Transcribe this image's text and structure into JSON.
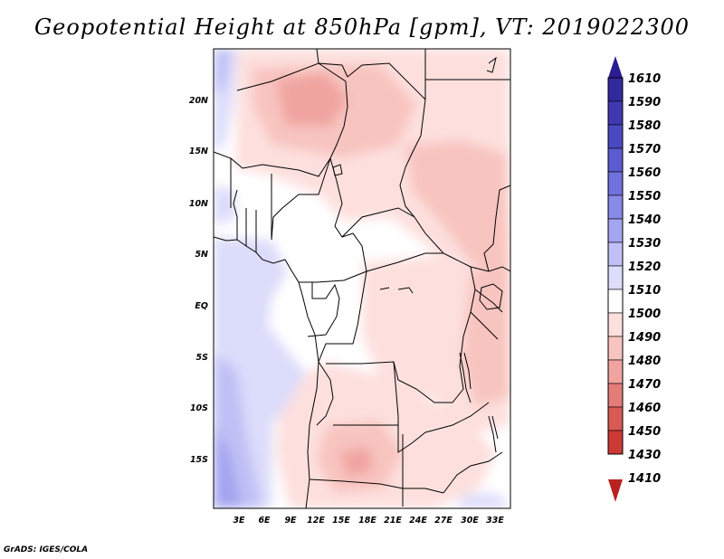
{
  "title": "Geopotential Height at 850hPa [gpm], VT: 2019022300",
  "credit": "GrADS: IGES/COLA",
  "lat_labels": [
    "20N",
    "15N",
    "10N",
    "5N",
    "EQ",
    "5S",
    "10S",
    "15S"
  ],
  "lon_labels": [
    "3E",
    "6E",
    "9E",
    "12E",
    "15E",
    "18E",
    "21E",
    "24E",
    "27E",
    "30E",
    "33E"
  ],
  "colorbar": {
    "labels": [
      "1610",
      "1590",
      "1580",
      "1570",
      "1560",
      "1550",
      "1540",
      "1530",
      "1520",
      "1510",
      "1500",
      "1490",
      "1480",
      "1470",
      "1460",
      "1450",
      "1430",
      "1410"
    ],
    "colors": [
      "#2a1c92",
      "#33299f",
      "#3f38b0",
      "#4c49c0",
      "#5c5bd0",
      "#7170dd",
      "#8989e8",
      "#a4a4f0",
      "#c0c0f6",
      "#dcdcfb",
      "#ffffff",
      "#fde0de",
      "#f8c4c0",
      "#f0a4a0",
      "#e47c78",
      "#d85a55",
      "#cc3a34",
      "#b82320"
    ]
  },
  "chart_data": {
    "type": "heatmap",
    "title": "Geopotential Height at 850hPa [gpm], VT: 2019022300",
    "variable": "Geopotential Height",
    "level": "850hPa",
    "units": "gpm",
    "valid_time": "2019022300",
    "lon_range": [
      0,
      34
    ],
    "lat_range": [
      -20,
      25
    ],
    "x_ticks": [
      "3E",
      "6E",
      "9E",
      "12E",
      "15E",
      "18E",
      "21E",
      "24E",
      "27E",
      "30E",
      "33E"
    ],
    "y_ticks": [
      "20N",
      "15N",
      "10N",
      "5N",
      "EQ",
      "5S",
      "10S",
      "15S"
    ],
    "color_levels": [
      1410,
      1430,
      1450,
      1460,
      1470,
      1480,
      1490,
      1500,
      1510,
      1520,
      1530,
      1540,
      1550,
      1560,
      1570,
      1580,
      1590,
      1610
    ]
  }
}
